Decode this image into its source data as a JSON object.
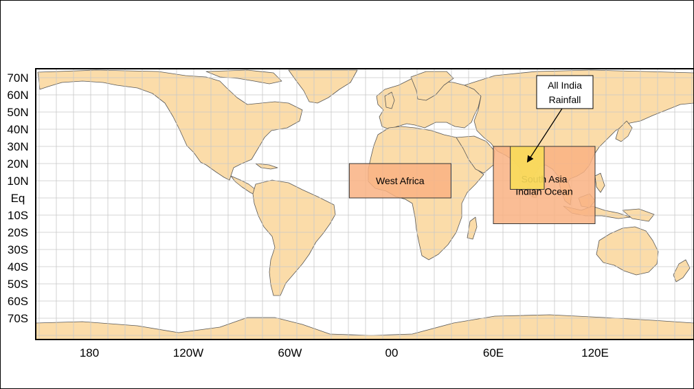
{
  "map": {
    "lat_labels": [
      "70N",
      "60N",
      "50N",
      "40N",
      "30N",
      "20N",
      "10N",
      "Eq",
      "10S",
      "20S",
      "30S",
      "40S",
      "50S",
      "60S",
      "70S"
    ],
    "lon_labels": [
      "180",
      "120W",
      "60W",
      "00",
      "60E",
      "120E"
    ],
    "regions": [
      {
        "id": "west-africa",
        "label": [
          "West Africa"
        ],
        "lon_range": [
          -25,
          35
        ],
        "lat_range": [
          0,
          20
        ],
        "color": "#f9b183"
      },
      {
        "id": "south-asia",
        "label": [
          "South Asia",
          "Indian Ocean"
        ],
        "lon_range": [
          60,
          120
        ],
        "lat_range": [
          -15,
          30
        ],
        "color": "#f9b183"
      },
      {
        "id": "all-india",
        "label": [],
        "lon_range": [
          70,
          90
        ],
        "lat_range": [
          5,
          30
        ],
        "color": "#f8dc5a"
      }
    ],
    "callout": {
      "lines": [
        "All India",
        "Rainfall"
      ]
    },
    "colors": {
      "land": "#fbdca9",
      "coast": "#555555",
      "ocean": "#ffffff",
      "grid": "#c8c8c8"
    }
  }
}
